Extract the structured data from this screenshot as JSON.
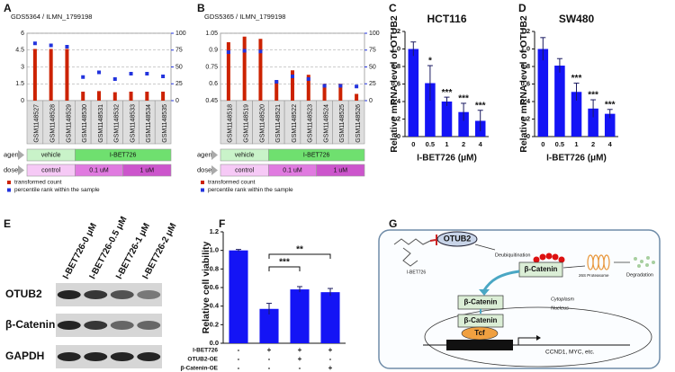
{
  "chart_data": [
    {
      "label": "A",
      "type": "bar",
      "subtitle": "GDS5364 / ILMN_1799198",
      "categories": [
        "GSM1148527",
        "GSM1148528",
        "GSM1148529",
        "GSM1148530",
        "GSM1148531",
        "GSM1148532",
        "GSM1148533",
        "GSM1148534",
        "GSM1148535"
      ],
      "series": [
        {
          "name": "transformed count",
          "color": "#cc2200",
          "values": [
            4.6,
            4.6,
            4.6,
            0.8,
            0.85,
            0.75,
            0.8,
            0.8,
            0.8
          ]
        },
        {
          "name": "percentile rank within the sample",
          "color": "#2233dd",
          "axis": "y2",
          "values": [
            85,
            82,
            80,
            35,
            42,
            32,
            40,
            40,
            36
          ]
        }
      ],
      "ylim": [
        0,
        6
      ],
      "yticks": [
        0,
        1.5,
        3,
        4.5,
        6
      ],
      "y2lim": [
        0,
        100
      ],
      "y2ticks": [
        0,
        25,
        50,
        75,
        100
      ],
      "grid": true,
      "rows": [
        {
          "label": "agent",
          "values": [
            "vehicle",
            "vehicle",
            "vehicle",
            "I-BET726",
            "I-BET726",
            "I-BET726",
            "I-BET726",
            "I-BET726",
            "I-BET726"
          ],
          "colors": [
            "#c9f3c9",
            "#c9f3c9",
            "#c9f3c9",
            "#6fe06f",
            "#6fe06f",
            "#6fe06f",
            "#6fe06f",
            "#6fe06f",
            "#6fe06f"
          ]
        },
        {
          "label": "dose",
          "values": [
            "control",
            "control",
            "control",
            "0.1 uM",
            "0.1 uM",
            "0.1 uM",
            "1 uM",
            "1 uM",
            "1 uM"
          ],
          "colors": [
            "#f6c9f6",
            "#f6c9f6",
            "#f6c9f6",
            "#e07ae0",
            "#e07ae0",
            "#e07ae0",
            "#cc55cc",
            "#cc55cc",
            "#cc55cc"
          ]
        }
      ]
    },
    {
      "label": "B",
      "type": "bar",
      "subtitle": "GDS5365 / ILMN_1799198",
      "categories": [
        "GSM1148518",
        "GSM1148519",
        "GSM1148520",
        "GSM1148521",
        "GSM1148522",
        "GSM1148523",
        "GSM1148524",
        "GSM1148525",
        "GSM1148526"
      ],
      "series": [
        {
          "name": "transformed count",
          "color": "#cc2200",
          "values": [
            0.97,
            1.02,
            1.0,
            0.63,
            0.72,
            0.68,
            0.6,
            0.6,
            0.51
          ]
        },
        {
          "name": "percentile rank within the sample",
          "color": "#2233dd",
          "axis": "y2",
          "values": [
            72,
            74,
            73,
            28,
            36,
            32,
            22,
            22,
            21
          ]
        }
      ],
      "ylim": [
        0.45,
        1.05
      ],
      "yticks": [
        0.45,
        0.6,
        0.75,
        0.9,
        1.05
      ],
      "y2lim": [
        0,
        100
      ],
      "y2ticks": [
        0,
        25,
        50,
        75,
        100
      ],
      "grid": true,
      "rows": [
        {
          "label": "agent",
          "values": [
            "vehicle",
            "vehicle",
            "vehicle",
            "I-BET726",
            "I-BET726",
            "I-BET726",
            "I-BET726",
            "I-BET726",
            "I-BET726"
          ],
          "colors": [
            "#c9f3c9",
            "#c9f3c9",
            "#c9f3c9",
            "#6fe06f",
            "#6fe06f",
            "#6fe06f",
            "#6fe06f",
            "#6fe06f",
            "#6fe06f"
          ]
        },
        {
          "label": "dose",
          "values": [
            "control",
            "control",
            "control",
            "0.1 uM",
            "0.1 uM",
            "0.1 uM",
            "1 uM",
            "1 uM",
            "1 uM"
          ],
          "colors": [
            "#f6c9f6",
            "#f6c9f6",
            "#f6c9f6",
            "#e07ae0",
            "#e07ae0",
            "#e07ae0",
            "#cc55cc",
            "#cc55cc",
            "#cc55cc"
          ]
        }
      ]
    },
    {
      "label": "C",
      "type": "errorbar",
      "title": "HCT116",
      "categories": [
        "0",
        "0.5",
        "1",
        "2",
        "4"
      ],
      "values": [
        1.0,
        0.61,
        0.4,
        0.28,
        0.18
      ],
      "errors": [
        0.08,
        0.2,
        0.05,
        0.1,
        0.12
      ],
      "value_annotations": [
        null,
        "*",
        "***",
        "***",
        "***"
      ],
      "color": "#1414f5",
      "xlabel": "I-BET726 (μM)",
      "ylabel": "Relative mRNA level of OTUB2",
      "ylim": [
        0,
        1.2
      ],
      "yticks": [
        0,
        0.2,
        0.4,
        0.6,
        0.8,
        {
          "value": 1,
          "label": "1.0"
        },
        1.2
      ]
    },
    {
      "label": "D",
      "type": "errorbar",
      "title": "SW480",
      "categories": [
        "0",
        "0.5",
        "1",
        "2",
        "4"
      ],
      "values": [
        1.0,
        0.81,
        0.51,
        0.32,
        0.26
      ],
      "errors": [
        0.13,
        0.08,
        0.1,
        0.1,
        0.05
      ],
      "value_annotations": [
        null,
        null,
        "***",
        "***",
        "***"
      ],
      "color": "#1414f5",
      "xlabel": "I-BET726 (μM)",
      "ylabel": "Relative mRNA level of OTUB2",
      "ylim": [
        0,
        1.2
      ],
      "yticks": [
        0,
        0.2,
        0.4,
        0.6,
        0.8,
        {
          "value": 1,
          "label": "1.0"
        },
        1.2
      ]
    },
    {
      "label": "F",
      "type": "errorbar",
      "values": [
        1.0,
        0.37,
        0.58,
        0.55
      ],
      "errors": [
        0.01,
        0.06,
        0.03,
        0.04
      ],
      "color": "#1414f5",
      "ylabel": "Relative cell viability",
      "ylim": [
        0,
        1.2
      ],
      "yticks": [
        {
          "value": 0,
          "label": "0.0"
        },
        0.2,
        0.4,
        0.6,
        0.8,
        {
          "value": 1,
          "label": "1.0"
        },
        1.2
      ],
      "conditions": [
        {
          "name": "I-BET726",
          "values": [
            "-",
            "+",
            "+",
            "+"
          ]
        },
        {
          "name": "OTUB2-OE",
          "values": [
            "-",
            "-",
            "+",
            "-"
          ]
        },
        {
          "name": "β-Catenin-OE",
          "values": [
            "-",
            "-",
            "-",
            "+"
          ]
        }
      ],
      "brackets": [
        {
          "text": "***",
          "pair": [
            1,
            2
          ]
        },
        {
          "text": "**",
          "pair": [
            1,
            3
          ]
        }
      ]
    }
  ],
  "blot": {
    "label": "E",
    "lanes": [
      "I-BET726-0 μM",
      "I-BET726-0.5 μM",
      "I-BET726-1 μM",
      "I-BET726-2 μM"
    ],
    "rows": [
      "OTUB2",
      "β-Catenin",
      "GAPDH"
    ]
  },
  "diagram": {
    "label": "G",
    "drug": "I-BET726",
    "target": "OTUB2",
    "process": "Deubiquitination",
    "protein": "β-Catenin",
    "proteasome": "26S Proteasome",
    "outcome": "Degradation",
    "cytoplasm": "Cytoplasm",
    "nucleus": "Nucleus",
    "factor": "Tcf",
    "genes": "CCND1, MYC, etc."
  }
}
